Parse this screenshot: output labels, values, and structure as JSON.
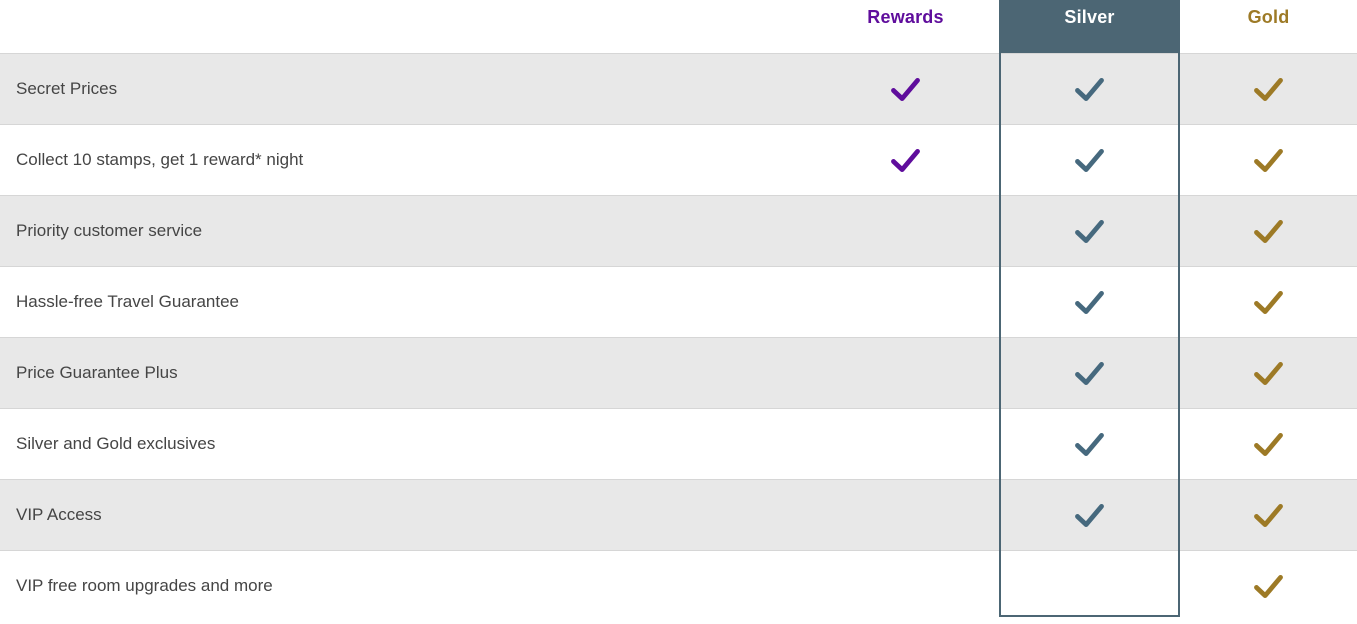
{
  "theme": {
    "rewards_purple": "#5f0d9c",
    "silver_slate": "#4c6674",
    "silver_check": "#46697e",
    "silver_header_text": "#ffffff",
    "gold": "#9d7a26",
    "row_stripe_gray": "#e8e8e8",
    "row_border": "#d6d6d6",
    "feature_text": "#454545"
  },
  "table": {
    "columns": [
      {
        "id": "rewards",
        "label": "Rewards"
      },
      {
        "id": "silver",
        "label": "Silver"
      },
      {
        "id": "gold",
        "label": "Gold"
      }
    ],
    "rows": [
      {
        "feature": "Secret Prices",
        "rewards": true,
        "silver": true,
        "gold": true
      },
      {
        "feature": "Collect 10 stamps, get 1 reward* night",
        "rewards": true,
        "silver": true,
        "gold": true
      },
      {
        "feature": "Priority customer service",
        "rewards": false,
        "silver": true,
        "gold": true
      },
      {
        "feature": "Hassle-free Travel Guarantee",
        "rewards": false,
        "silver": true,
        "gold": true
      },
      {
        "feature": "Price Guarantee Plus",
        "rewards": false,
        "silver": true,
        "gold": true
      },
      {
        "feature": "Silver and Gold exclusives",
        "rewards": false,
        "silver": true,
        "gold": true
      },
      {
        "feature": "VIP Access",
        "rewards": false,
        "silver": true,
        "gold": true
      },
      {
        "feature": "VIP free room upgrades and more",
        "rewards": false,
        "silver": false,
        "gold": true
      }
    ]
  }
}
